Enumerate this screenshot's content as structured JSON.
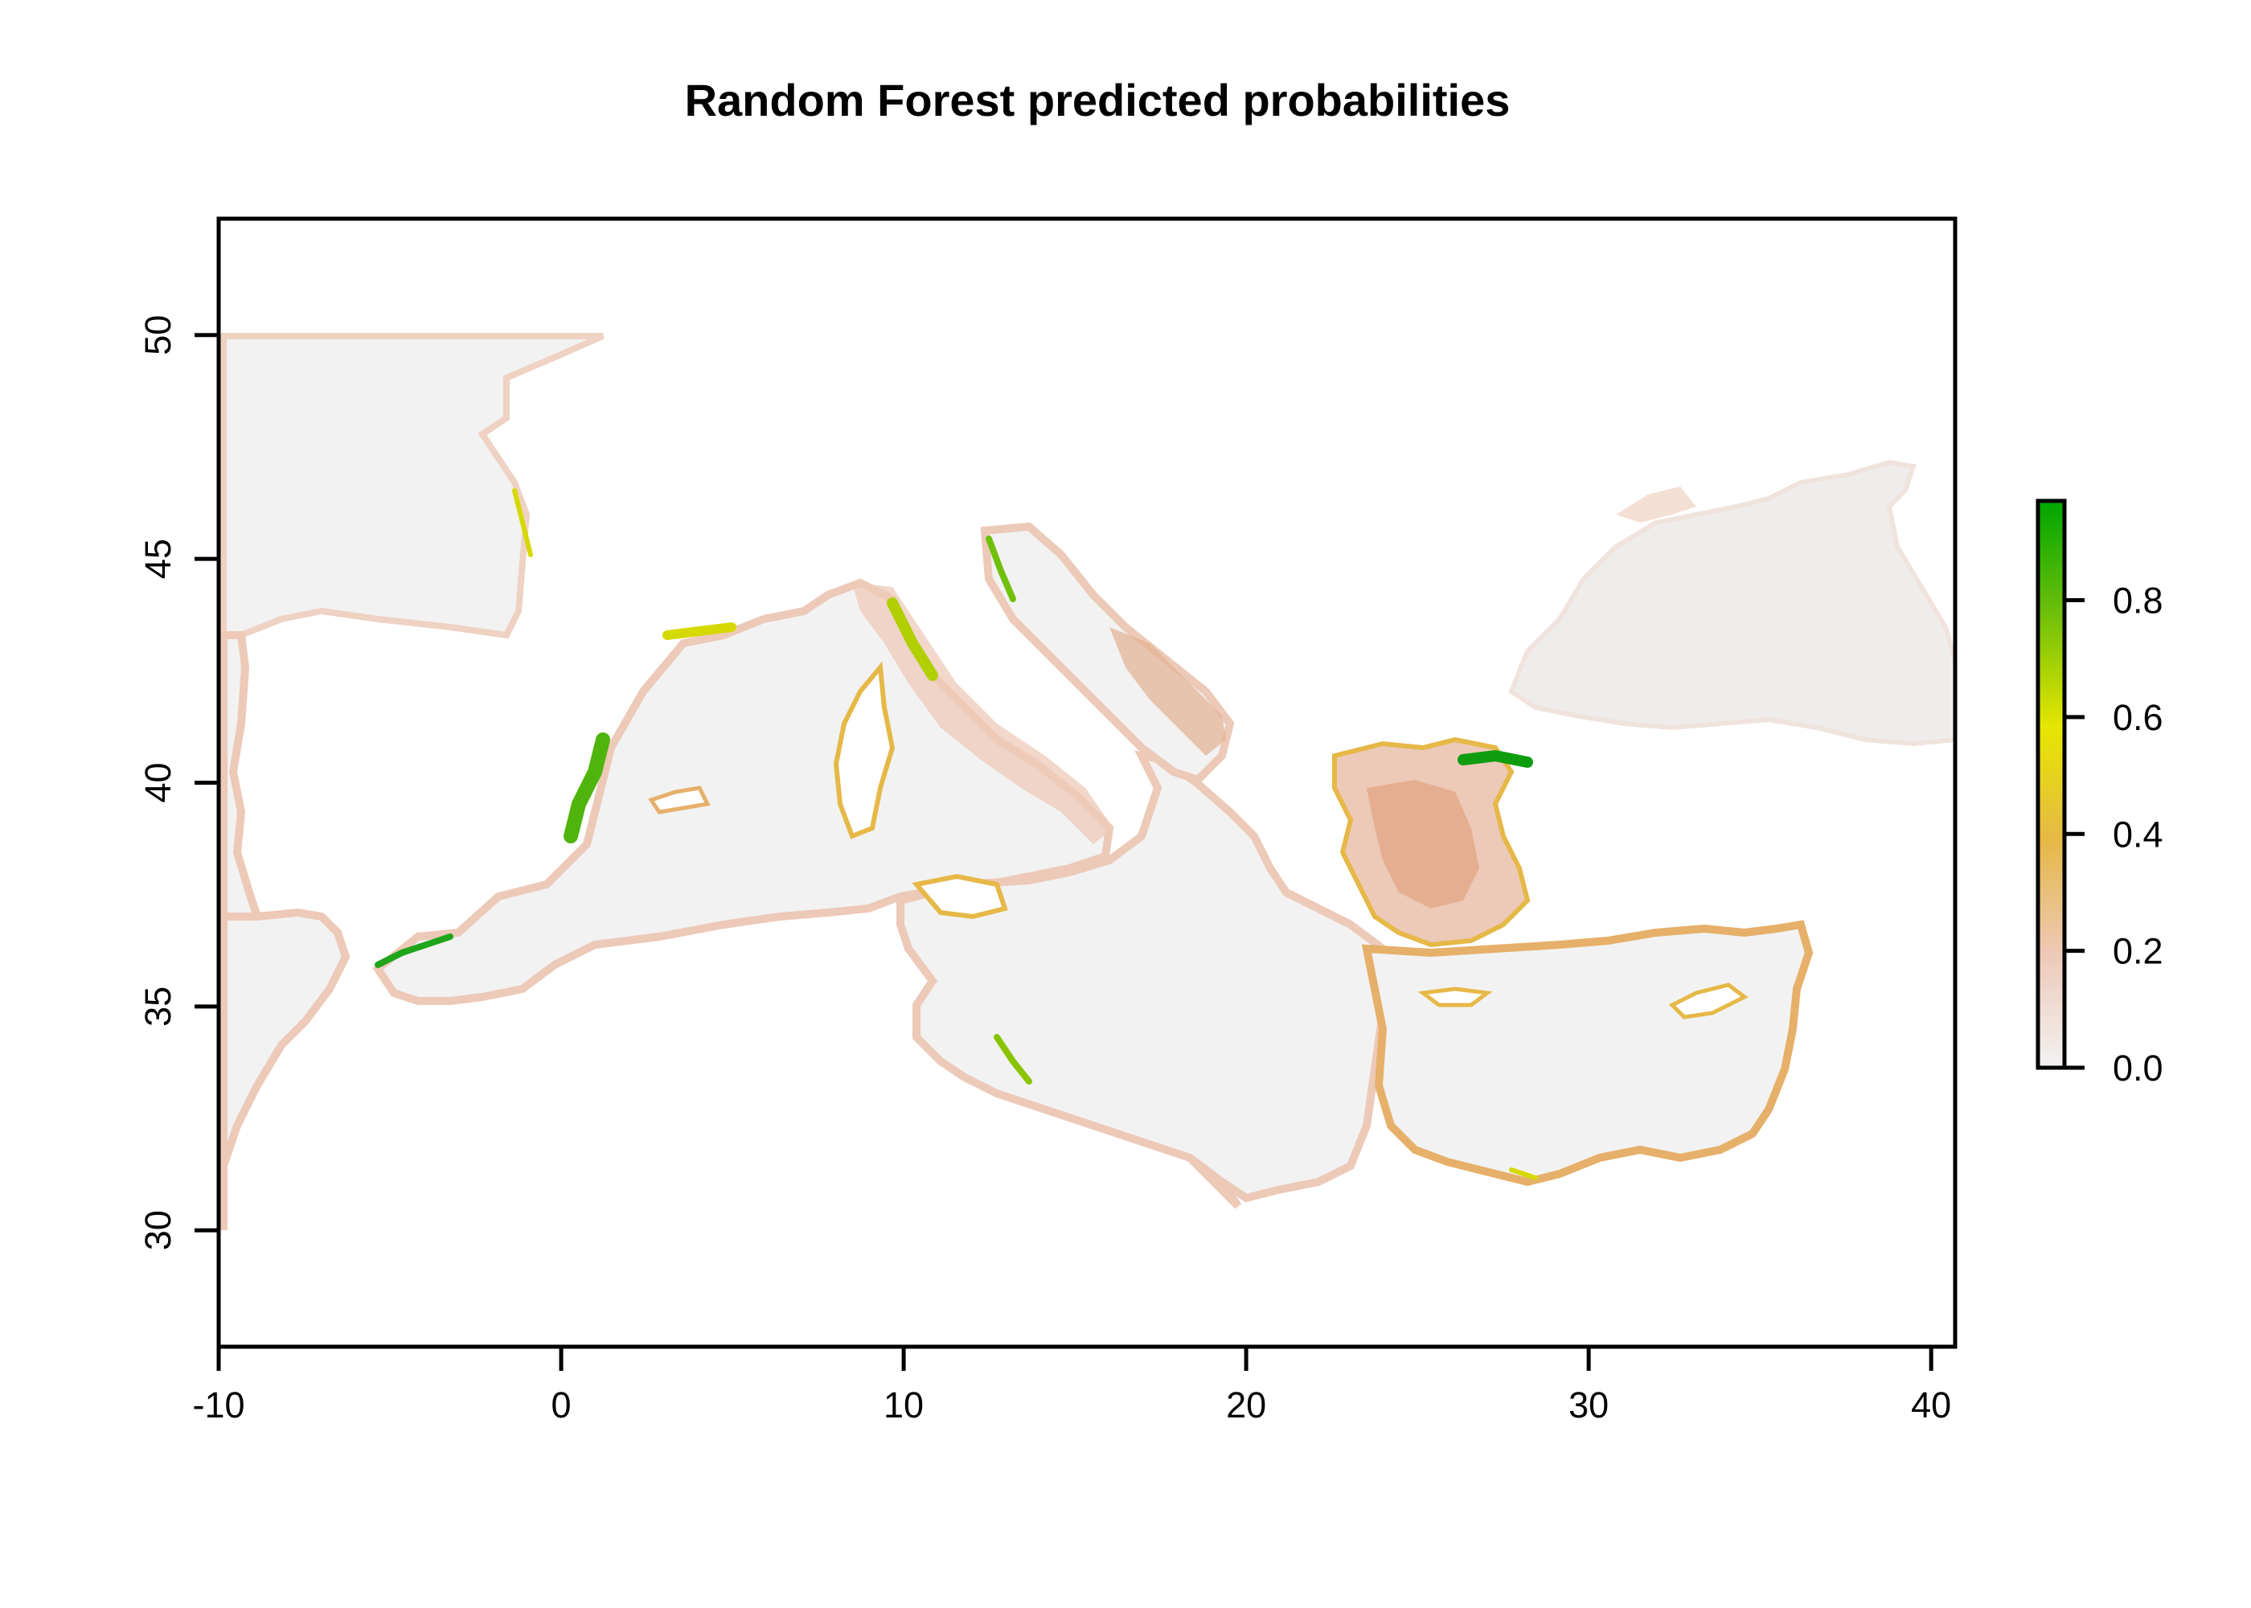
{
  "title": "Random Forest predicted probabilities",
  "map": {
    "type": "raster",
    "x_axis": {
      "ticks": [
        "-10",
        "0",
        "10",
        "20",
        "30",
        "40"
      ],
      "range": [
        -10,
        40.7
      ]
    },
    "y_axis": {
      "ticks": [
        "30",
        "35",
        "40",
        "45",
        "50"
      ],
      "range": [
        27.4,
        52.6
      ]
    },
    "raster_extent": {
      "lon": [
        -10,
        42
      ],
      "lat": [
        30,
        50
      ]
    },
    "legend": {
      "ticks": [
        "0.0",
        "0.2",
        "0.4",
        "0.6",
        "0.8"
      ],
      "range": [
        0,
        0.97
      ],
      "colors": [
        "#f2f2f2",
        "#ebb79e",
        "#e6b847",
        "#e6e600",
        "#00a600"
      ]
    },
    "value_colors": {
      "low": "#f2f2f2",
      "mid_low": "#efd0c2",
      "mid": "#e6b847",
      "high": "#d6d900",
      "top": "#1ea51a"
    }
  }
}
